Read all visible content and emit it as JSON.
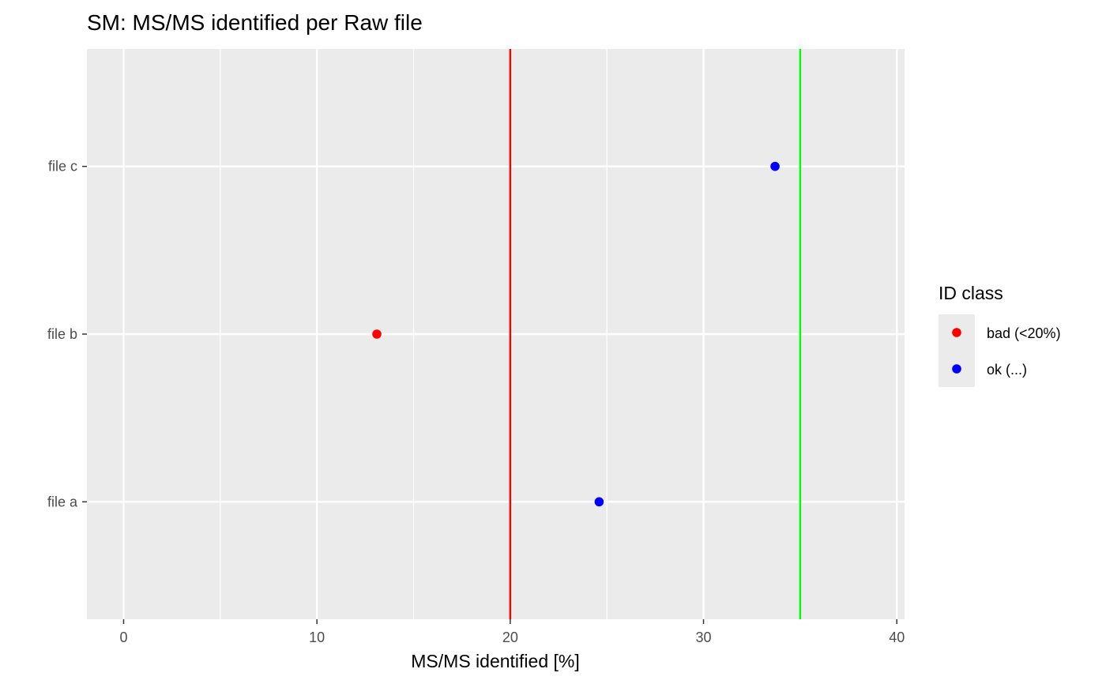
{
  "chart_data": {
    "type": "scatter",
    "title": "SM: MS/MS identified per Raw file",
    "xlabel": "MS/MS identified [%]",
    "ylabel": "",
    "xlim": [
      -1.9,
      40.4
    ],
    "x_ticks": [
      0,
      10,
      20,
      30,
      40
    ],
    "x_minor_ticks": [
      5,
      15,
      25,
      35
    ],
    "categories": [
      "file a",
      "file b",
      "file c"
    ],
    "points": [
      {
        "category": "file a",
        "x": 24.6,
        "class": "ok (...)"
      },
      {
        "category": "file b",
        "x": 13.1,
        "class": "bad (<20%)"
      },
      {
        "category": "file c",
        "x": 33.7,
        "class": "ok (...)"
      }
    ],
    "reference_lines": [
      {
        "x": 20,
        "color": "#ff0000"
      },
      {
        "x": 35,
        "color": "#00ff00"
      }
    ],
    "legend": {
      "title": "ID class",
      "position": "right",
      "entries": [
        {
          "label": "bad (<20%)",
          "color": "#ff0000"
        },
        {
          "label": "ok (...)",
          "color": "#0000ff"
        }
      ]
    },
    "grid": true,
    "panel_background": "#ebebeb",
    "gridline_color": "#ffffff"
  }
}
